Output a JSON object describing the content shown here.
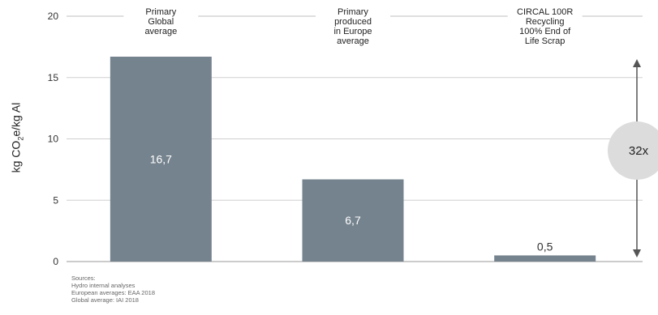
{
  "chart_data": {
    "type": "bar",
    "categories": [
      [
        "Primary",
        "Global",
        "average"
      ],
      [
        "Primary",
        "produced",
        "in Europe",
        "average"
      ],
      [
        "CIRCAL 100R",
        "Recycling",
        "100% End of",
        "Life Scrap"
      ]
    ],
    "values": [
      16.7,
      6.7,
      0.5
    ],
    "value_labels": [
      "16,7",
      "6,7",
      "0,5"
    ],
    "ylabel_parts": {
      "pre": "kg CO",
      "sub": "2",
      "post": "e/kg Al"
    },
    "yticks": [
      "0",
      "5",
      "10",
      "15",
      "20"
    ],
    "ylim": [
      0,
      20
    ],
    "grid": true,
    "bar_color": "#75838e",
    "annotation": {
      "label": "32x",
      "from": 0,
      "to": 16.7
    }
  },
  "sources": [
    "Sources:",
    "Hydro internal analyses",
    "European averages: EAA 2018",
    "Global average: IAI 2018"
  ]
}
